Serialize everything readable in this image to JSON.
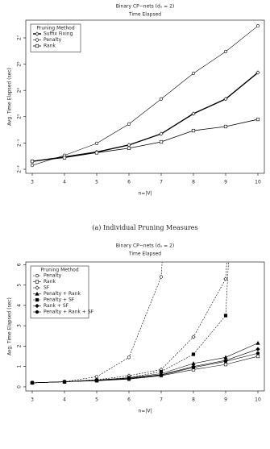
{
  "chart_data": [
    {
      "type": "line",
      "title": "Binary CP−nets (dᵤ = 2)",
      "subtitle": "Time Elapsed",
      "xlabel": "n=|V|",
      "ylabel": "Avg. Time Elapsed (sec)",
      "caption": "(a) Individual Pruning Measures",
      "log_y": true,
      "x": [
        3,
        4,
        5,
        6,
        7,
        8,
        9,
        10
      ],
      "xlim": [
        2.8,
        10.2
      ],
      "xticks": [
        3,
        4,
        5,
        6,
        7,
        8,
        9,
        10
      ],
      "ylim": [
        0.101,
        326
      ],
      "yticks": [
        {
          "value": 0.125,
          "label": "2⁻³"
        },
        {
          "value": 0.5,
          "label": "2⁻¹"
        },
        {
          "value": 2,
          "label": "2¹"
        },
        {
          "value": 8,
          "label": "2³"
        },
        {
          "value": 32,
          "label": "2⁵"
        },
        {
          "value": 128,
          "label": "2⁷"
        }
      ],
      "legend_title": "Pruning Method",
      "legend": "upper left",
      "series": [
        {
          "name": "Suffix Fixing",
          "color": "#000000",
          "marker": "diamond-open",
          "width": 1.4,
          "dash": false,
          "values": [
            0.19,
            0.24,
            0.31,
            0.45,
            0.81,
            2.35,
            5.1,
            20.5
          ]
        },
        {
          "name": "Penalty",
          "color": "#000000",
          "marker": "circle-open",
          "width": 0.6,
          "dash": false,
          "values": [
            0.154,
            0.26,
            0.49,
            1.36,
            5.1,
            19.7,
            62,
            240
          ]
        },
        {
          "name": "Rank",
          "color": "#000000",
          "marker": "square-open",
          "width": 0.8,
          "dash": false,
          "values": [
            0.19,
            0.23,
            0.3,
            0.38,
            0.53,
            0.96,
            1.19,
            1.74
          ]
        }
      ]
    },
    {
      "type": "line",
      "title": "Binary CP−nets (dᵤ = 2)",
      "subtitle": "Time Elapsed",
      "xlabel": "n=|V|",
      "ylabel": "Avg. Time Elapsed (sec)",
      "log_y": false,
      "x": [
        3,
        4,
        5,
        6,
        7,
        8,
        9,
        10
      ],
      "xlim": [
        2.8,
        10.2
      ],
      "xticks": [
        3,
        4,
        5,
        6,
        7,
        8,
        9,
        10
      ],
      "ylim": [
        -0.2,
        6.13
      ],
      "yticks": [
        0,
        1,
        2,
        3,
        4,
        5,
        6
      ],
      "legend_title": "Pruning Method",
      "legend": "upper left",
      "series": [
        {
          "name": "Penalty",
          "color": "#000000",
          "marker": "circle-open",
          "width": 0.6,
          "dash": true,
          "values": [
            0.2,
            0.25,
            0.5,
            1.45,
            5.4,
            null,
            null,
            null
          ]
        },
        {
          "name": "Rank",
          "color": "#000000",
          "marker": "square-open",
          "width": 0.6,
          "dash": false,
          "values": [
            0.2,
            0.25,
            0.3,
            0.38,
            0.55,
            0.85,
            1.1,
            1.5
          ]
        },
        {
          "name": "SF",
          "color": "#000000",
          "marker": "diamond-open",
          "width": 0.6,
          "dash": true,
          "values": [
            0.2,
            0.25,
            0.35,
            0.55,
            0.85,
            2.45,
            5.3,
            null
          ]
        },
        {
          "name": "Penalty + Rank",
          "color": "#000000",
          "marker": "triangle",
          "width": 0.6,
          "dash": false,
          "values": [
            0.2,
            0.26,
            0.33,
            0.45,
            0.65,
            1.15,
            1.45,
            2.15
          ]
        },
        {
          "name": "Penalty + SF",
          "color": "#000000",
          "marker": "square",
          "width": 0.6,
          "dash": true,
          "values": [
            0.2,
            0.25,
            0.33,
            0.45,
            0.75,
            1.6,
            3.5,
            null
          ]
        },
        {
          "name": "Rank + SF",
          "color": "#000000",
          "marker": "diamond",
          "width": 0.6,
          "dash": false,
          "values": [
            0.2,
            0.25,
            0.32,
            0.42,
            0.6,
            1.0,
            1.3,
            1.85
          ]
        },
        {
          "name": "Penalty + Rank + SF",
          "color": "#000000",
          "marker": "circle",
          "width": 0.6,
          "dash": false,
          "values": [
            0.2,
            0.25,
            0.31,
            0.4,
            0.58,
            0.95,
            1.25,
            1.65
          ]
        }
      ]
    }
  ]
}
